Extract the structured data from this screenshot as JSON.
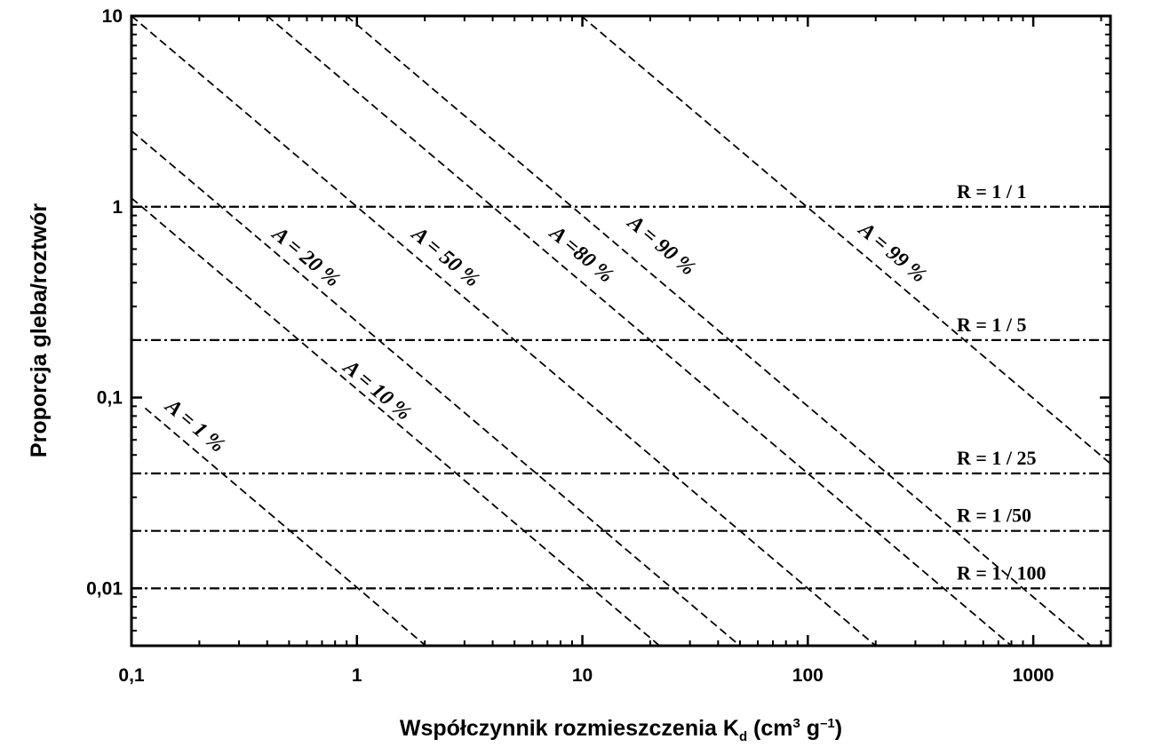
{
  "chart_data": {
    "type": "line",
    "xlabel": [
      "Współczynnik rozmieszczenia K",
      "d",
      " (cm",
      "3",
      " g",
      "–1",
      ")"
    ],
    "ylabel": "Proporcja gleba/roztwór",
    "xlog": true,
    "ylog": true,
    "xlim": [
      0.1,
      2200
    ],
    "ylim": [
      0.005,
      10
    ],
    "xticks": [
      {
        "value": 0.1,
        "label": "0,1"
      },
      1,
      10,
      100,
      1000
    ],
    "yticks": [
      {
        "value": 0.01,
        "label": "0,01"
      },
      {
        "value": 0.1,
        "label": "0,1"
      },
      1,
      10
    ],
    "color": "#000000",
    "series": [
      {
        "name": "A = 1 %",
        "x": [
          0.115,
          2.0
        ],
        "values": [
          0.088,
          0.00505
        ]
      },
      {
        "name": "A = 10 %",
        "x": [
          0.1,
          22
        ],
        "values": [
          1.11,
          0.005
        ]
      },
      {
        "name": "A = 20 %",
        "x": [
          0.1,
          50
        ],
        "values": [
          2.5,
          0.005
        ]
      },
      {
        "name": "A = 50 %",
        "x": [
          0.1,
          200
        ],
        "values": [
          10,
          0.005
        ]
      },
      {
        "name": "A =80 %",
        "x": [
          0.4,
          800
        ],
        "values": [
          10,
          0.005
        ]
      },
      {
        "name": "A = 90 %",
        "x": [
          0.9,
          1800
        ],
        "values": [
          10,
          0.005
        ]
      },
      {
        "name": "A = 99 %",
        "x": [
          9.9,
          2200
        ],
        "values": [
          10,
          0.045
        ]
      }
    ],
    "hlines": [
      {
        "label": "R = 1 / 1",
        "value": 1
      },
      {
        "label": "R = 1 / 5",
        "value": 0.2
      },
      {
        "label": "R = 1 / 25",
        "value": 0.04
      },
      {
        "label": "R = 1 /50",
        "value": 0.02
      },
      {
        "label": "R = 1 / 100",
        "value": 0.01
      }
    ]
  }
}
